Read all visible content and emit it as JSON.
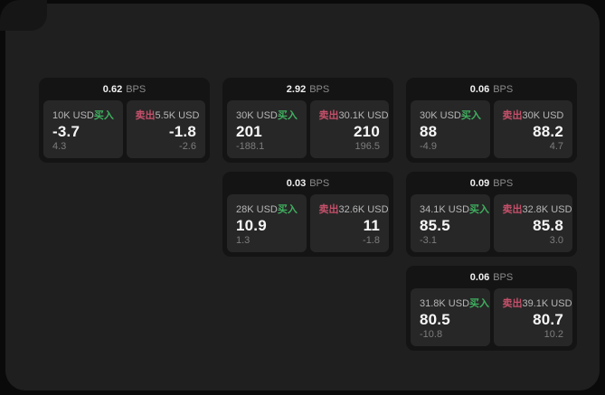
{
  "colors": {
    "buy_green": "#3fb05f",
    "sell_red": "#c4506a",
    "window_bg": "#1f1f1f",
    "page_bg": "#0a0a0a",
    "card_bg": "#141414",
    "pane_bg": "#272727"
  },
  "cards": [
    {
      "bps_value": "0.62",
      "bps_unit": "BPS",
      "buy": {
        "amount": "10K USD",
        "side": "买入",
        "price": "-3.7",
        "change": "4.3"
      },
      "sell": {
        "amount": "5.5K USD",
        "side": "卖出",
        "price": "-1.8",
        "change": "-2.6"
      }
    },
    {
      "bps_value": "2.92",
      "bps_unit": "BPS",
      "buy": {
        "amount": "30K USD",
        "side": "买入",
        "price": "201",
        "change": "-188.1"
      },
      "sell": {
        "amount": "30.1K USD",
        "side": "卖出",
        "price": "210",
        "change": "196.5"
      }
    },
    {
      "bps_value": "0.06",
      "bps_unit": "BPS",
      "buy": {
        "amount": "30K USD",
        "side": "买入",
        "price": "88",
        "change": "-4.9"
      },
      "sell": {
        "amount": "30K USD",
        "side": "卖出",
        "price": "88.2",
        "change": "4.7"
      }
    },
    {
      "bps_value": "0.03",
      "bps_unit": "BPS",
      "buy": {
        "amount": "28K USD",
        "side": "买入",
        "price": "10.9",
        "change": "1.3"
      },
      "sell": {
        "amount": "32.6K USD",
        "side": "卖出",
        "price": "11",
        "change": "-1.8"
      }
    },
    {
      "bps_value": "0.09",
      "bps_unit": "BPS",
      "buy": {
        "amount": "34.1K USD",
        "side": "买入",
        "price": "85.5",
        "change": "-3.1"
      },
      "sell": {
        "amount": "32.8K USD",
        "side": "卖出",
        "price": "85.8",
        "change": "3.0"
      }
    },
    {
      "bps_value": "0.06",
      "bps_unit": "BPS",
      "buy": {
        "amount": "31.8K USD",
        "side": "买入",
        "price": "80.5",
        "change": "-10.8"
      },
      "sell": {
        "amount": "39.1K USD",
        "side": "卖出",
        "price": "80.7",
        "change": "10.2"
      }
    }
  ]
}
